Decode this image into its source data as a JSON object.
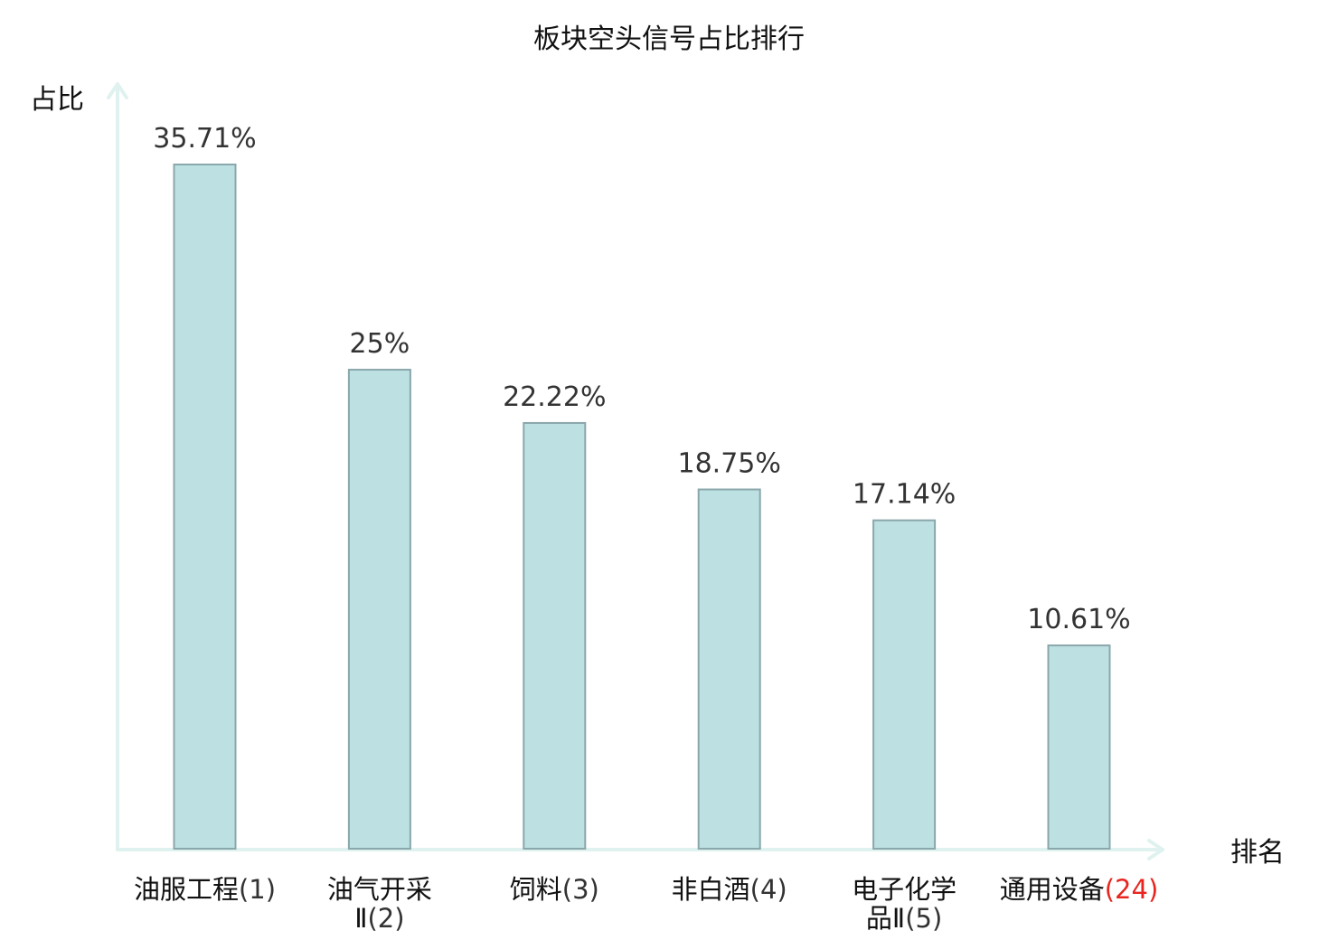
{
  "chart_data": {
    "type": "bar",
    "title": "板块空头信号占比排行",
    "xlabel": "排名",
    "ylabel": "占比",
    "categories": [
      {
        "name": "油服工程",
        "rank": "(1)",
        "lines": [
          [
            "油服工程",
            "(1)"
          ]
        ]
      },
      {
        "name": "油气开采Ⅱ",
        "rank": "(2)",
        "lines": [
          [
            "油气开采",
            ""
          ],
          [
            "Ⅱ",
            "(2)"
          ]
        ]
      },
      {
        "name": "饲料",
        "rank": "(3)",
        "lines": [
          [
            "饲料",
            "(3)"
          ]
        ]
      },
      {
        "name": "非白酒",
        "rank": "(4)",
        "lines": [
          [
            "非白酒",
            "(4)"
          ]
        ]
      },
      {
        "name": "电子化学品Ⅱ",
        "rank": "(5)",
        "lines": [
          [
            "电子化学",
            ""
          ],
          [
            "品Ⅱ",
            "(5)"
          ]
        ]
      },
      {
        "name": "通用设备",
        "rank": "(24)",
        "lines": [
          [
            "通用设备",
            "(24)"
          ]
        ],
        "highlight": true
      }
    ],
    "values": [
      35.71,
      25,
      22.22,
      18.75,
      17.14,
      10.61
    ],
    "value_labels": [
      "35.71%",
      "25%",
      "22.22%",
      "18.75%",
      "17.14%",
      "10.61%"
    ],
    "ylim": [
      0,
      40
    ],
    "grid": false,
    "legend": "none"
  },
  "colors": {
    "bar_fill": "#bde0e3",
    "bar_stroke": "#8aa7ab",
    "axis": "#e0f2ef",
    "highlight_text": "#e8251f",
    "normal_text": "#111111",
    "value_text": "#333333"
  }
}
